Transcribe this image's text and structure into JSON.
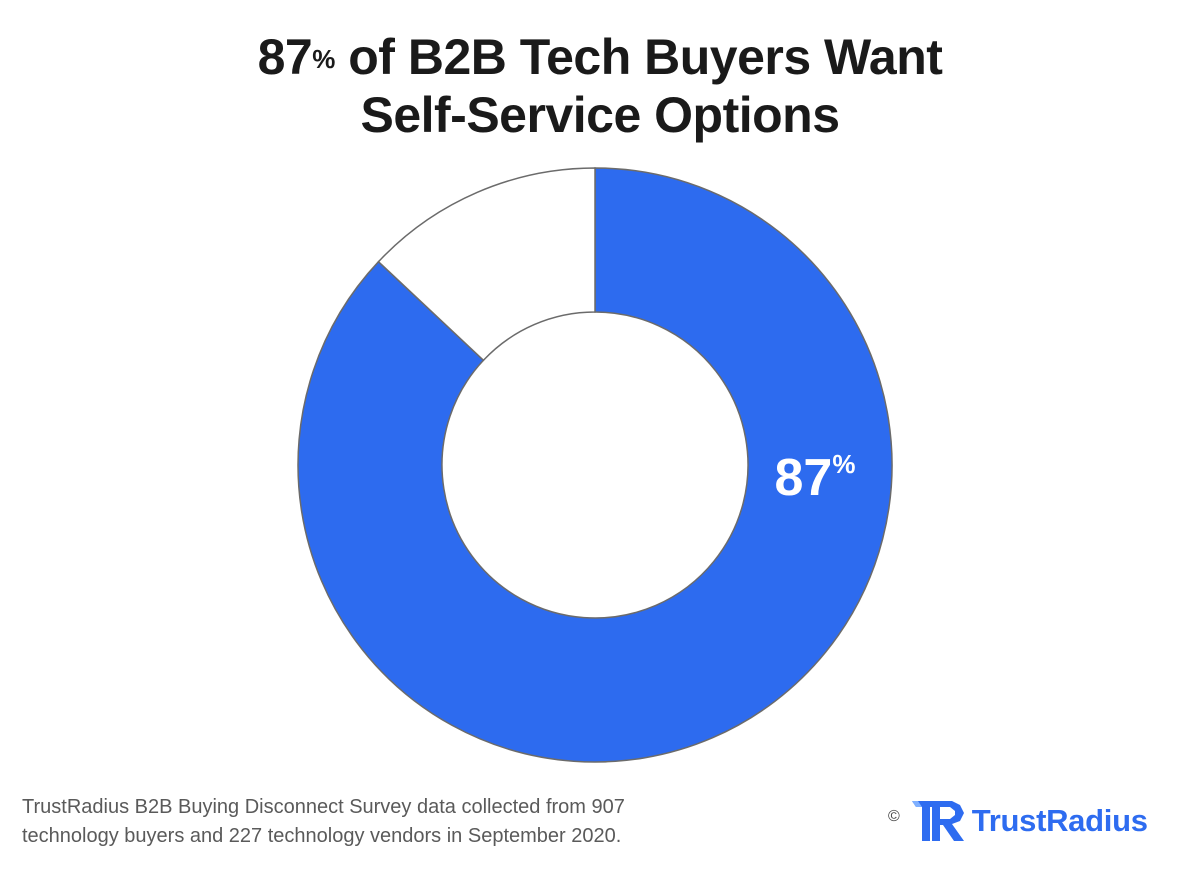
{
  "title": {
    "number": "87",
    "percent_sign": "%",
    "line1_rest": " of B2B Tech Buyers Want",
    "line2": "Self-Service Options"
  },
  "chart_data": {
    "type": "pie",
    "variant": "donut",
    "title": "87% of B2B Tech Buyers Want Self-Service Options",
    "categories": [
      "",
      ""
    ],
    "values": [
      87,
      13
    ],
    "unit": "%",
    "colors": [
      "#2d6bef",
      "#ffffff"
    ],
    "data_labels": [
      {
        "number": "87",
        "suffix": "%"
      },
      null
    ],
    "legend": "none"
  },
  "footnote": {
    "line1": "TrustRadius B2B Buying Disconnect Survey data collected from 907",
    "line2": "technology buyers and 227 technology vendors in September 2020."
  },
  "brand": {
    "copyright": "©",
    "logo_icon": "trustradius-tr-logo-icon",
    "name": "TrustRadius",
    "color": "#2e6cf0"
  }
}
